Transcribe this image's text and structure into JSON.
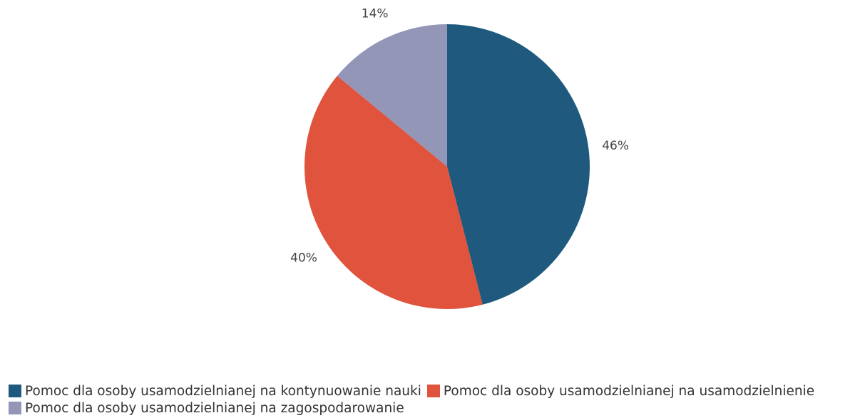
{
  "chart_data": {
    "type": "pie",
    "categories": [
      "Pomoc dla osoby usamodzielnianej na kontynuowanie nauki",
      "Pomoc dla osoby usamodzielnianej na usamodzielnienie",
      "Pomoc dla osoby usamodzielnianej na zagospodarowanie"
    ],
    "values": [
      46,
      40,
      14
    ],
    "data_labels": [
      "46%",
      "40%",
      "14%"
    ],
    "colors": [
      "#1f5a7e",
      "#e0533d",
      "#9496b8"
    ],
    "title": "",
    "legend_position": "bottom-left",
    "start_angle": "12 o'clock",
    "direction": "clockwise"
  }
}
